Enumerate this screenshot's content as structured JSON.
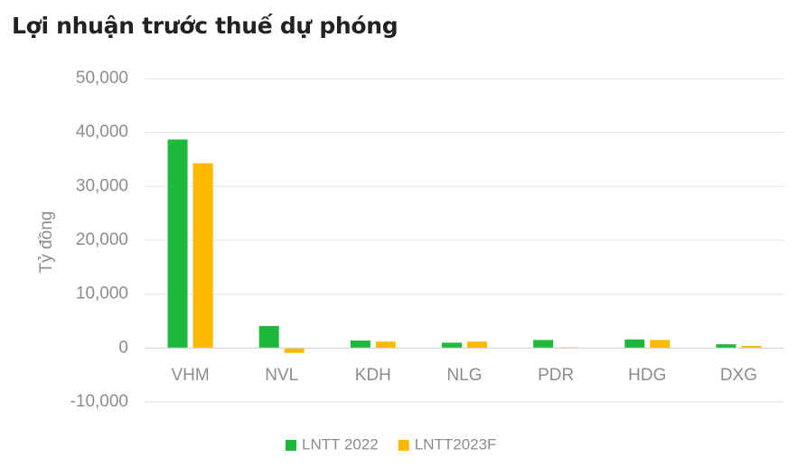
{
  "page_title": "Lợi nhuận trước thuế dự phóng",
  "chart_data": {
    "type": "bar",
    "title": "Lợi nhuận trước thuế dự phóng",
    "xlabel": "",
    "ylabel": "Tỷ đồng",
    "ylim": [
      -10000,
      50000
    ],
    "yticks": [
      50000,
      40000,
      30000,
      20000,
      10000,
      0,
      -10000
    ],
    "ytick_labels": [
      "50,000",
      "40,000",
      "30,000",
      "20,000",
      "10,000",
      "0",
      "-10,000"
    ],
    "categories": [
      "VHM",
      "NVL",
      "KDH",
      "NLG",
      "PDR",
      "HDG",
      "DXG"
    ],
    "series": [
      {
        "name": "LNTT 2022",
        "color": "#1db83c",
        "values": [
          38700,
          4100,
          1400,
          1000,
          1500,
          1600,
          700
        ]
      },
      {
        "name": "LNTT2023F",
        "color": "#ffb800",
        "values": [
          34300,
          -900,
          1200,
          1200,
          150,
          1500,
          400
        ]
      }
    ],
    "grid": true,
    "legend_position": "bottom-center"
  }
}
